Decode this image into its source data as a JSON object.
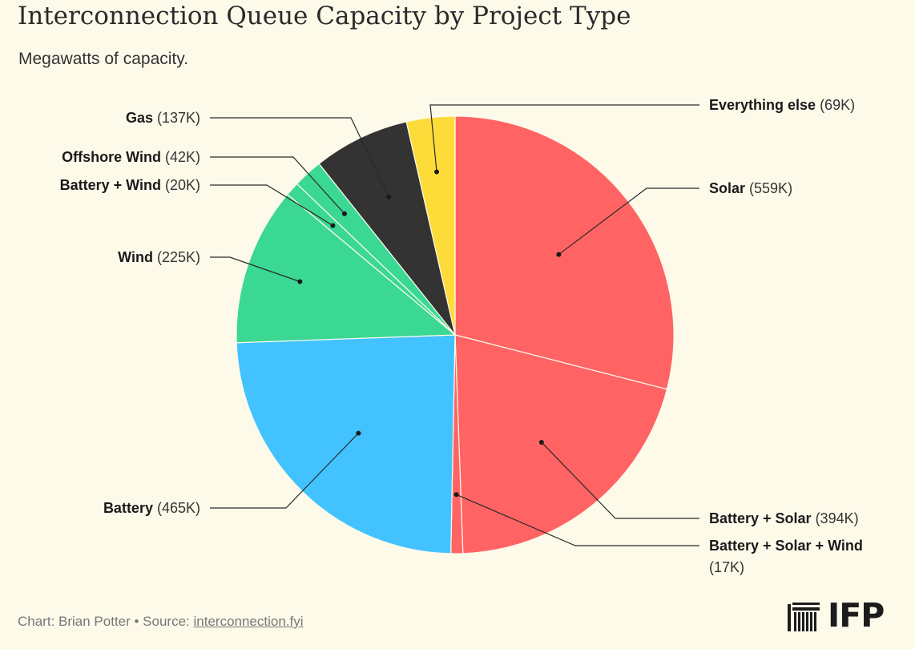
{
  "title": "Interconnection Queue Capacity by Project Type",
  "subtitle": "Megawatts of capacity.",
  "footer": {
    "credit": "Chart: Brian Potter • Source: ",
    "source_link": "interconnection.fyi"
  },
  "logo": {
    "text": "IFP",
    "icon": "ifp-building-icon"
  },
  "chart_data": {
    "type": "pie",
    "unit": "MW",
    "slices": [
      {
        "name": "Solar",
        "value": 559000,
        "display": "(559K)",
        "color": "#ff6363"
      },
      {
        "name": "Battery + Solar",
        "value": 394000,
        "display": "(394K)",
        "color": "#ff6363"
      },
      {
        "name": "Battery + Solar + Wind",
        "value": 17000,
        "display": "(17K)",
        "color": "#ff6363"
      },
      {
        "name": "Battery",
        "value": 465000,
        "display": "(465K)",
        "color": "#42c3ff"
      },
      {
        "name": "Wind",
        "value": 225000,
        "display": "(225K)",
        "color": "#3ad893"
      },
      {
        "name": "Battery + Wind",
        "value": 20000,
        "display": "(20K)",
        "color": "#3ad893"
      },
      {
        "name": "Offshore Wind",
        "value": 42000,
        "display": "(42K)",
        "color": "#3ad893"
      },
      {
        "name": "Gas",
        "value": 137000,
        "display": "(137K)",
        "color": "#333333"
      },
      {
        "name": "Everything else",
        "value": 69000,
        "display": "(69K)",
        "color": "#fddc3a"
      }
    ]
  }
}
